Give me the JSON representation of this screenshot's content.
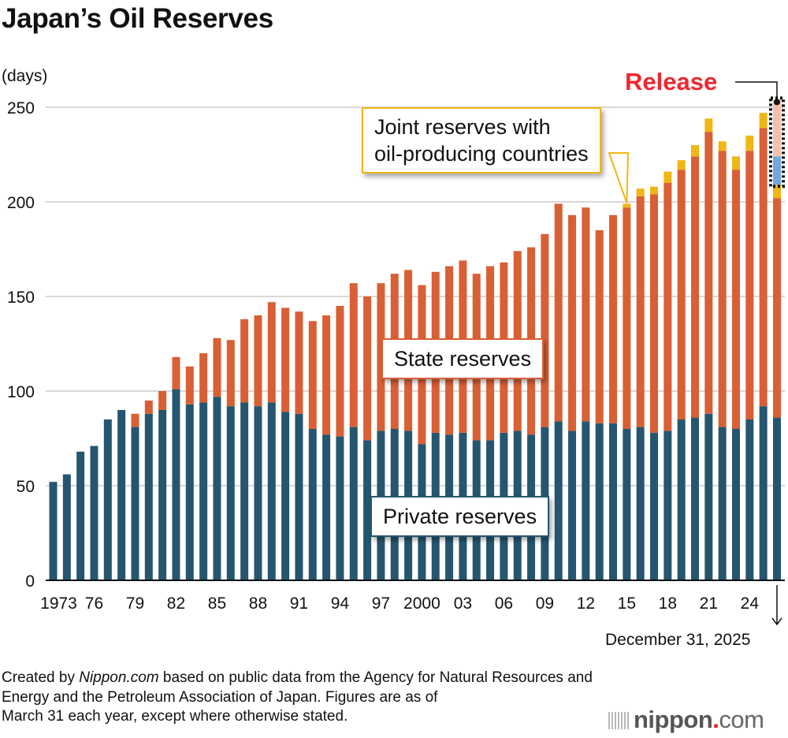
{
  "title": "Japan’s Oil Reserves",
  "unit_label": "(days)",
  "annotations": {
    "state": "State reserves",
    "private": "Private reserves",
    "joint_line1": "Joint reserves with",
    "joint_line2": "oil-producing countries",
    "release": "Release",
    "last_date": "December 31, 2025"
  },
  "source": {
    "prefix": "Created by ",
    "brand": "Nippon.com",
    "line1_rest": " based on public data from the Agency for Natural Resources and",
    "line2": "Energy and the Petroleum Association of Japan. Figures are as of",
    "line3": "March 31 each year, except where otherwise stated."
  },
  "logo": {
    "name": "nippon",
    "dot": ".",
    "tld": "com"
  },
  "colors": {
    "private": "#24566f",
    "state": "#d95f34",
    "joint": "#f0b616",
    "release_state": "#f2c0ad",
    "release_private": "#72a8d8",
    "release_text": "#f2272e",
    "grid": "#cccccc"
  },
  "chart_data": {
    "type": "bar",
    "stacked": true,
    "title": "Japan’s Oil Reserves",
    "ylabel": "(days)",
    "xlabel": "",
    "ylim": [
      0,
      250
    ],
    "yticks": [
      0,
      50,
      100,
      150,
      200,
      250
    ],
    "grid": true,
    "categories": [
      "1973",
      "1974",
      "1975",
      "1976",
      "1977",
      "1978",
      "1979",
      "1980",
      "1981",
      "1982",
      "1983",
      "1984",
      "1985",
      "1986",
      "1987",
      "1988",
      "1989",
      "1990",
      "1991",
      "1992",
      "1993",
      "1994",
      "1995",
      "1996",
      "1997",
      "1998",
      "1999",
      "2000",
      "2001",
      "2002",
      "2003",
      "2004",
      "2005",
      "2006",
      "2007",
      "2008",
      "2009",
      "2010",
      "2011",
      "2012",
      "2013",
      "2014",
      "2015",
      "2016",
      "2017",
      "2018",
      "2019",
      "2020",
      "2021",
      "2022",
      "2023",
      "2024",
      "2025",
      "Dec 2025"
    ],
    "xtick_labels": [
      {
        "index": 0,
        "label": "1973"
      },
      {
        "index": 3,
        "label": "76"
      },
      {
        "index": 6,
        "label": "79"
      },
      {
        "index": 9,
        "label": "82"
      },
      {
        "index": 12,
        "label": "85"
      },
      {
        "index": 15,
        "label": "88"
      },
      {
        "index": 18,
        "label": "91"
      },
      {
        "index": 21,
        "label": "94"
      },
      {
        "index": 24,
        "label": "97"
      },
      {
        "index": 27,
        "label": "2000"
      },
      {
        "index": 30,
        "label": "03"
      },
      {
        "index": 33,
        "label": "06"
      },
      {
        "index": 36,
        "label": "09"
      },
      {
        "index": 39,
        "label": "12"
      },
      {
        "index": 42,
        "label": "15"
      },
      {
        "index": 45,
        "label": "18"
      },
      {
        "index": 48,
        "label": "21"
      },
      {
        "index": 51,
        "label": "24"
      }
    ],
    "series": [
      {
        "name": "Private reserves",
        "key": "private",
        "values": [
          52,
          56,
          68,
          71,
          85,
          90,
          81,
          88,
          90,
          101,
          93,
          94,
          97,
          92,
          94,
          92,
          94,
          89,
          88,
          80,
          77,
          76,
          81,
          74,
          79,
          80,
          79,
          72,
          78,
          77,
          78,
          74,
          74,
          78,
          79,
          77,
          81,
          84,
          79,
          84,
          83,
          83,
          80,
          81,
          78,
          79,
          85,
          86,
          88,
          81,
          80,
          85,
          92,
          86
        ]
      },
      {
        "name": "State reserves",
        "key": "state",
        "values": [
          0,
          0,
          0,
          0,
          0,
          0,
          7,
          7,
          10,
          17,
          20,
          26,
          31,
          35,
          44,
          48,
          53,
          55,
          54,
          57,
          63,
          69,
          76,
          76,
          78,
          82,
          85,
          84,
          85,
          89,
          91,
          88,
          92,
          90,
          95,
          99,
          102,
          115,
          114,
          113,
          102,
          110,
          117,
          122,
          126,
          131,
          132,
          138,
          149,
          146,
          137,
          142,
          147,
          116
        ]
      },
      {
        "name": "Joint reserves with oil-producing countries",
        "key": "joint",
        "values": [
          0,
          0,
          0,
          0,
          0,
          0,
          0,
          0,
          0,
          0,
          0,
          0,
          0,
          0,
          0,
          0,
          0,
          0,
          0,
          0,
          0,
          0,
          0,
          0,
          0,
          0,
          0,
          0,
          0,
          0,
          0,
          0,
          0,
          0,
          0,
          0,
          0,
          0,
          0,
          0,
          0,
          0,
          2,
          4,
          4,
          6,
          5,
          6,
          7,
          5,
          7,
          8,
          8,
          7
        ]
      },
      {
        "name": "Release (private)",
        "key": "release_private",
        "values": [
          0,
          0,
          0,
          0,
          0,
          0,
          0,
          0,
          0,
          0,
          0,
          0,
          0,
          0,
          0,
          0,
          0,
          0,
          0,
          0,
          0,
          0,
          0,
          0,
          0,
          0,
          0,
          0,
          0,
          0,
          0,
          0,
          0,
          0,
          0,
          0,
          0,
          0,
          0,
          0,
          0,
          0,
          0,
          0,
          0,
          0,
          0,
          0,
          0,
          0,
          0,
          0,
          0,
          15
        ]
      },
      {
        "name": "Release (state)",
        "key": "release_state",
        "values": [
          0,
          0,
          0,
          0,
          0,
          0,
          0,
          0,
          0,
          0,
          0,
          0,
          0,
          0,
          0,
          0,
          0,
          0,
          0,
          0,
          0,
          0,
          0,
          0,
          0,
          0,
          0,
          0,
          0,
          0,
          0,
          0,
          0,
          0,
          0,
          0,
          0,
          0,
          0,
          0,
          0,
          0,
          0,
          0,
          0,
          0,
          0,
          0,
          0,
          0,
          0,
          0,
          0,
          30
        ]
      }
    ],
    "annotations": [
      "State reserves",
      "Private reserves",
      "Joint reserves with oil-producing countries",
      "Release",
      "December 31, 2025"
    ]
  }
}
